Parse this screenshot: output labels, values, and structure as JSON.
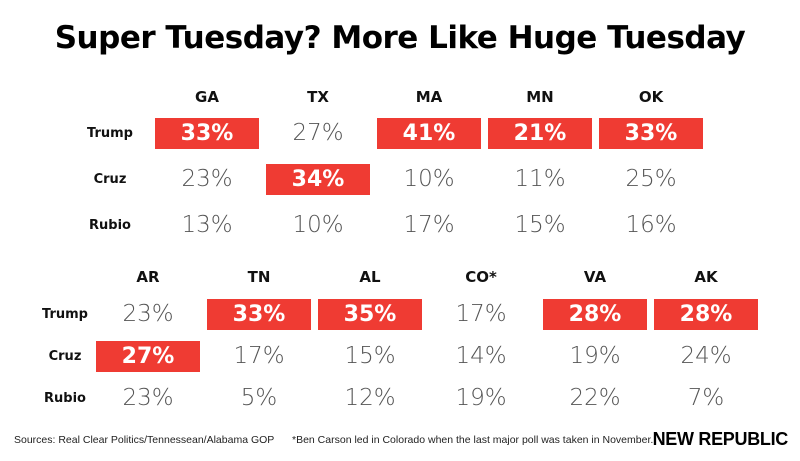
{
  "title": "Super Tuesday? More Like Huge Tuesday",
  "chart_data": {
    "type": "table",
    "title": "Super Tuesday? More Like Huge Tuesday",
    "tables": [
      {
        "columns": [
          "GA",
          "TX",
          "MA",
          "MN",
          "OK"
        ],
        "rows": [
          {
            "label": "Trump",
            "values": [
              "33%",
              "27%",
              "41%",
              "21%",
              "33%"
            ],
            "winner": [
              true,
              false,
              true,
              true,
              true
            ]
          },
          {
            "label": "Cruz",
            "values": [
              "23%",
              "34%",
              "10%",
              "11%",
              "25%"
            ],
            "winner": [
              false,
              true,
              false,
              false,
              false
            ]
          },
          {
            "label": "Rubio",
            "values": [
              "13%",
              "10%",
              "17%",
              "15%",
              "16%"
            ],
            "winner": [
              false,
              false,
              false,
              false,
              false
            ]
          }
        ]
      },
      {
        "columns": [
          "AR",
          "TN",
          "AL",
          "CO*",
          "VA",
          "AK"
        ],
        "rows": [
          {
            "label": "Trump",
            "values": [
              "23%",
              "33%",
              "35%",
              "17%",
              "28%",
              "28%"
            ],
            "winner": [
              false,
              true,
              true,
              false,
              true,
              true
            ]
          },
          {
            "label": "Cruz",
            "values": [
              "27%",
              "17%",
              "15%",
              "14%",
              "19%",
              "24%"
            ],
            "winner": [
              true,
              false,
              false,
              false,
              false,
              false
            ]
          },
          {
            "label": "Rubio",
            "values": [
              "23%",
              "5%",
              "12%",
              "19%",
              "22%",
              "7%"
            ],
            "winner": [
              false,
              false,
              false,
              false,
              false,
              false
            ]
          }
        ]
      }
    ],
    "highlight_color": "#ef3b33"
  },
  "footer": {
    "sources": "Sources: Real Clear Politics/Tennessean/Alabama GOP",
    "note": "*Ben Carson led in Colorado when the last major poll was taken in November.",
    "brand": "NEW REPUBLIC"
  }
}
